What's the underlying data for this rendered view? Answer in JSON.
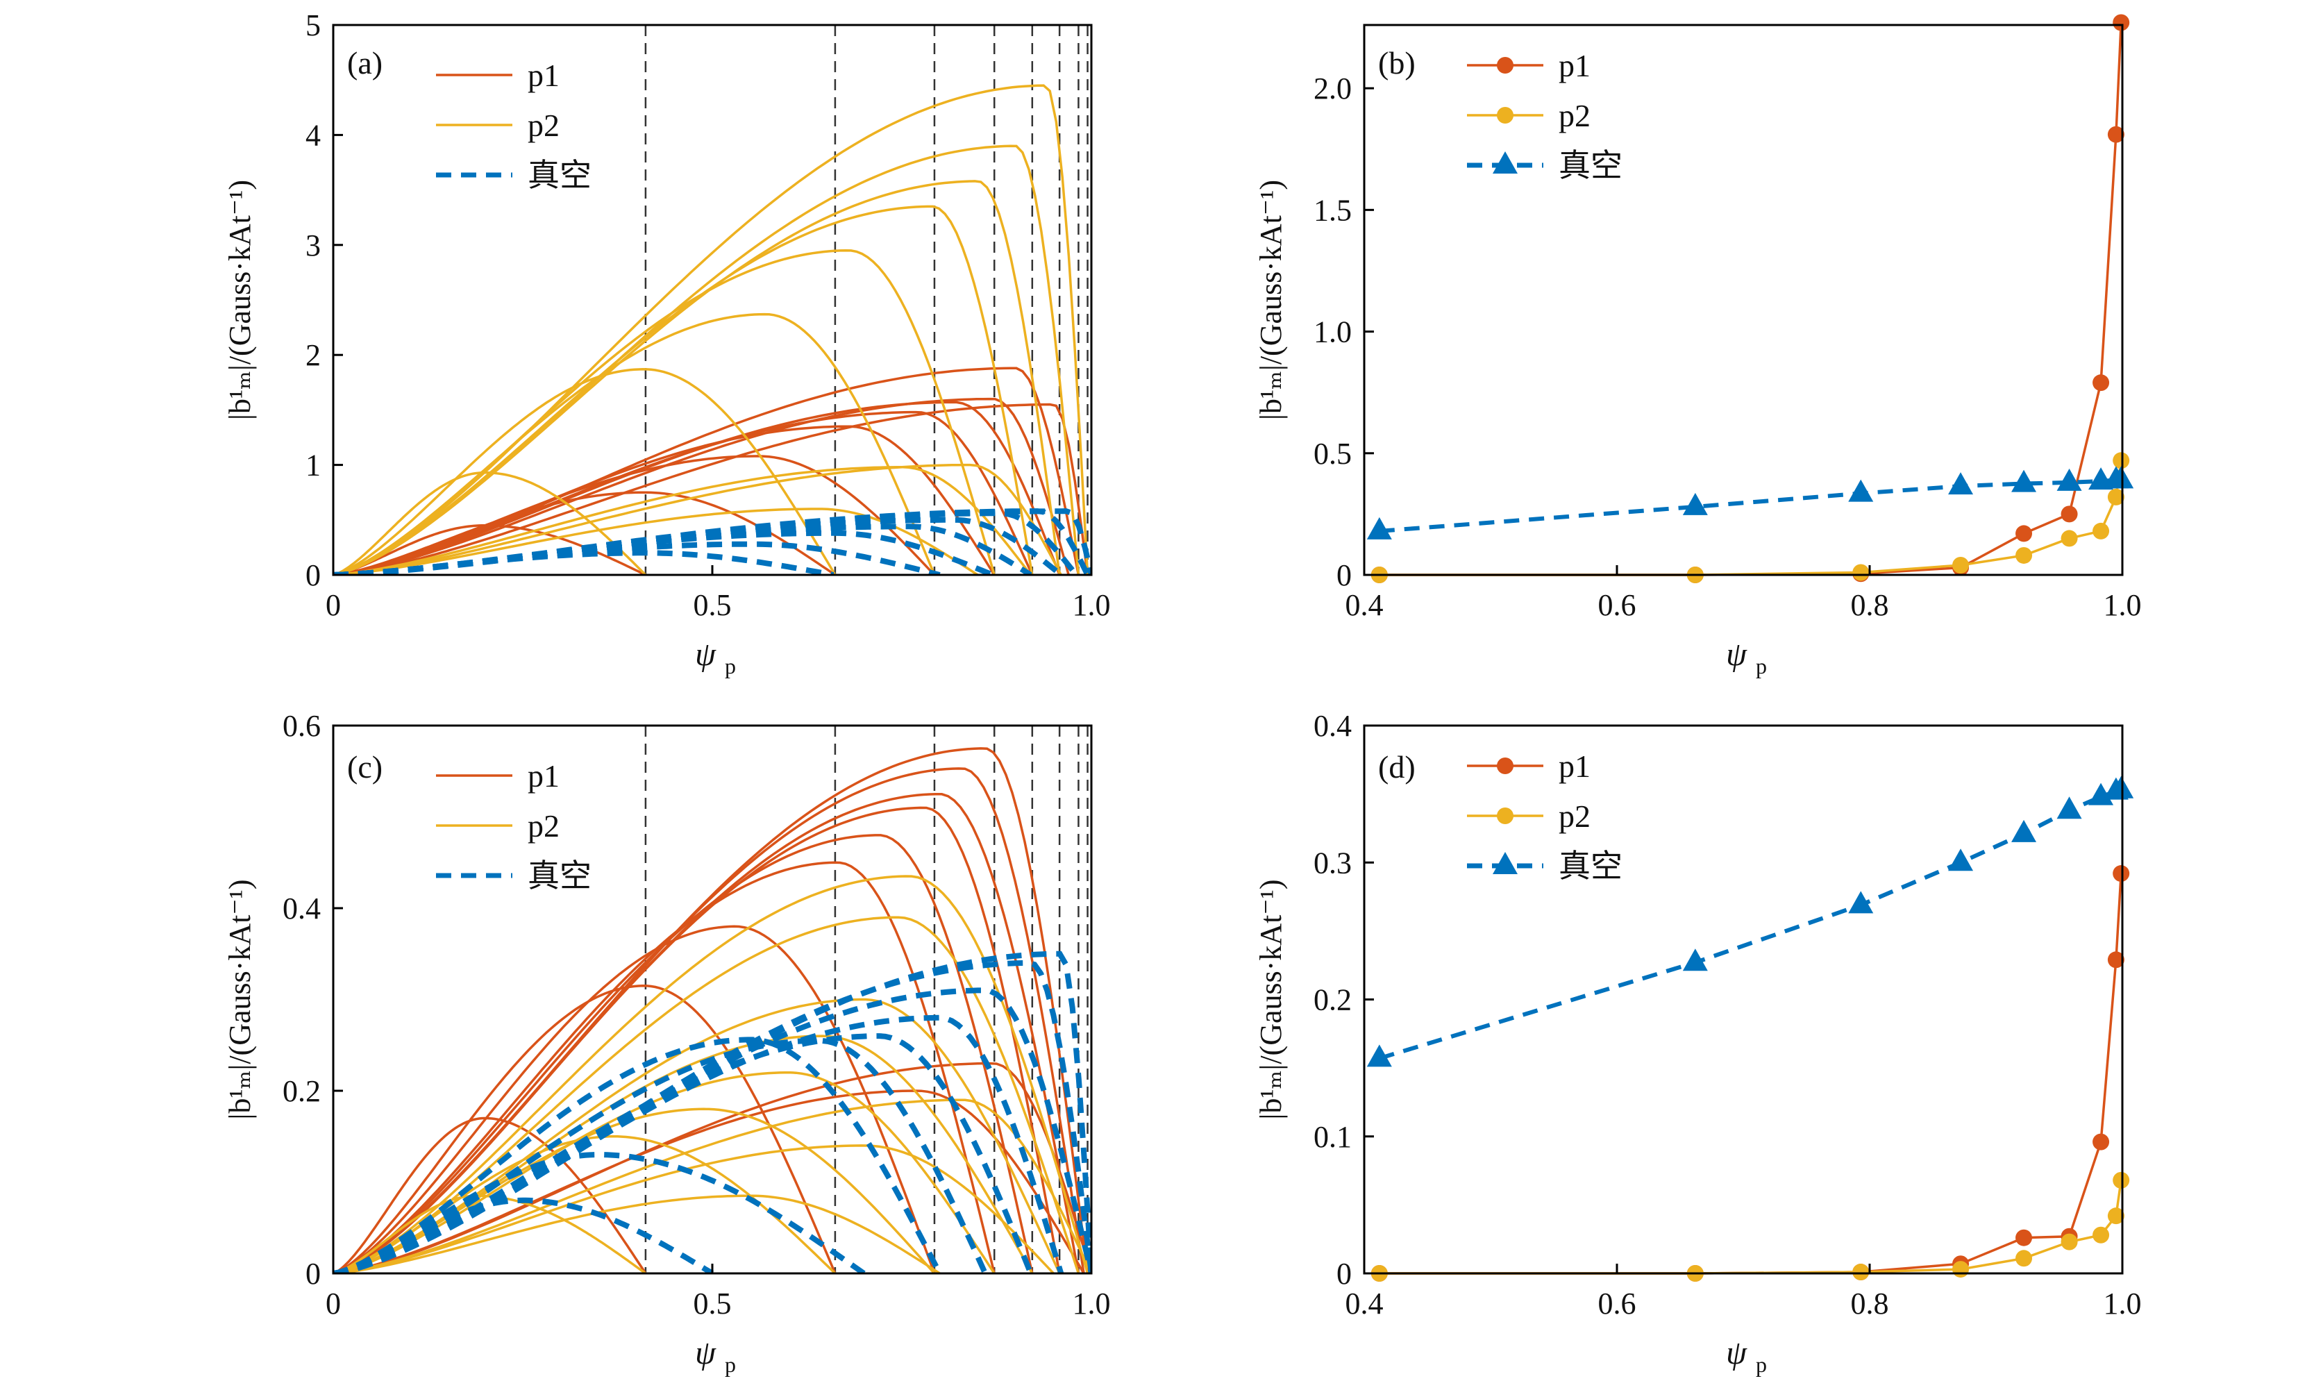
{
  "chart_data": [
    {
      "panel": "(a)",
      "type": "line",
      "xlabel": "ψ",
      "xlabel_sub": "p",
      "ylabel": "|b¹ₘ|/(Gauss·kAt⁻¹)",
      "xlim": [
        0,
        1.0
      ],
      "ylim": [
        0,
        5
      ],
      "xticks": [
        0,
        0.5,
        1.0
      ],
      "xtick_labels": [
        "0",
        "0.5",
        "1.0"
      ],
      "yticks": [
        0,
        1,
        2,
        3,
        4,
        5
      ],
      "ytick_labels": [
        "0",
        "1",
        "2",
        "3",
        "4",
        "5"
      ],
      "rational_surfaces": [
        0.412,
        0.662,
        0.793,
        0.872,
        0.922,
        0.958,
        0.983,
        0.995
      ],
      "legend": [
        "p1",
        "p2",
        "真空"
      ],
      "series": [
        {
          "name": "p1",
          "color": "#D95319",
          "style": "solid",
          "humps": [
            [
              0.2,
              0.45,
              0.412
            ],
            [
              0.41,
              0.75,
              0.662
            ],
            [
              0.56,
              1.08,
              0.793
            ],
            [
              0.68,
              1.35,
              0.872
            ],
            [
              0.77,
              1.48,
              0.922
            ],
            [
              0.82,
              1.57,
              0.958
            ],
            [
              0.87,
              1.6,
              0.97
            ],
            [
              0.9,
              1.88,
              0.983
            ],
            [
              0.95,
              1.55,
              0.995
            ]
          ]
        },
        {
          "name": "p2",
          "color": "#EDB120",
          "style": "solid",
          "humps": [
            [
              0.2,
              0.93,
              0.412
            ],
            [
              0.41,
              1.87,
              0.662
            ],
            [
              0.57,
              2.37,
              0.793
            ],
            [
              0.68,
              2.95,
              0.872
            ],
            [
              0.79,
              3.35,
              0.922
            ],
            [
              0.85,
              3.58,
              0.958
            ],
            [
              0.9,
              3.9,
              0.983
            ],
            [
              0.94,
              4.45,
              0.995
            ],
            [
              0.64,
              0.6,
              0.85
            ],
            [
              0.75,
              0.98,
              0.92
            ],
            [
              0.84,
              1.0,
              0.96
            ]
          ]
        },
        {
          "name": "真空",
          "color": "#0072BD",
          "style": "dashed",
          "humps": [
            [
              0.41,
              0.2,
              0.66
            ],
            [
              0.55,
              0.28,
              0.8
            ],
            [
              0.66,
              0.38,
              0.87
            ],
            [
              0.76,
              0.44,
              0.92
            ],
            [
              0.82,
              0.5,
              0.96
            ],
            [
              0.88,
              0.56,
              0.98
            ],
            [
              0.93,
              0.58,
              0.995
            ],
            [
              0.97,
              0.58,
              1.0
            ]
          ]
        }
      ]
    },
    {
      "panel": "(b)",
      "type": "line",
      "xlabel": "ψ",
      "xlabel_sub": "p",
      "ylabel": "|b¹ₘ|/(Gauss·kAt⁻¹)",
      "xlim": [
        0.4,
        1.0
      ],
      "ylim": [
        0,
        2.26
      ],
      "xticks": [
        0.4,
        0.6,
        0.8,
        1.0
      ],
      "xtick_labels": [
        "0.4",
        "0.6",
        "0.8",
        "1.0"
      ],
      "yticks": [
        0,
        0.5,
        1.0,
        1.5,
        2.0
      ],
      "ytick_labels": [
        "0",
        "0.5",
        "1.0",
        "1.5",
        "2.0"
      ],
      "legend": [
        "p1",
        "p2",
        "真空"
      ],
      "x": [
        0.412,
        0.662,
        0.793,
        0.872,
        0.922,
        0.958,
        0.983,
        0.995,
        0.999
      ],
      "series": [
        {
          "name": "p1",
          "color": "#D95319",
          "marker": "circle",
          "style": "solid",
          "values": [
            0,
            0,
            0.005,
            0.03,
            0.17,
            0.25,
            0.79,
            1.81,
            2.27
          ]
        },
        {
          "name": "p2",
          "color": "#EDB120",
          "marker": "circle",
          "style": "solid",
          "values": [
            0,
            0,
            0.01,
            0.04,
            0.08,
            0.15,
            0.18,
            0.32,
            0.47
          ]
        },
        {
          "name": "真空",
          "color": "#0072BD",
          "marker": "triangle",
          "style": "dashed",
          "values": [
            0.18,
            0.28,
            0.335,
            0.365,
            0.375,
            0.38,
            0.385,
            0.39,
            0.39
          ]
        }
      ]
    },
    {
      "panel": "(c)",
      "type": "line",
      "xlabel": "ψ",
      "xlabel_sub": "p",
      "ylabel": "|b¹ₘ|/(Gauss·kAt⁻¹)",
      "xlim": [
        0,
        1.0
      ],
      "ylim": [
        0,
        0.6
      ],
      "xticks": [
        0,
        0.5,
        1.0
      ],
      "xtick_labels": [
        "0",
        "0.5",
        "1.0"
      ],
      "yticks": [
        0,
        0.2,
        0.4,
        0.6
      ],
      "ytick_labels": [
        "0",
        "0.2",
        "0.4",
        "0.6"
      ],
      "rational_surfaces": [
        0.412,
        0.662,
        0.793,
        0.872,
        0.922,
        0.958,
        0.983,
        0.995
      ],
      "legend": [
        "p1",
        "p2",
        "真空"
      ],
      "series": [
        {
          "name": "p1",
          "color": "#D95319",
          "style": "solid",
          "humps": [
            [
              0.2,
              0.17,
              0.412
            ],
            [
              0.41,
              0.315,
              0.662
            ],
            [
              0.53,
              0.38,
              0.793
            ],
            [
              0.665,
              0.45,
              0.872
            ],
            [
              0.72,
              0.48,
              0.922
            ],
            [
              0.78,
              0.51,
              0.958
            ],
            [
              0.8,
              0.525,
              0.983
            ],
            [
              0.83,
              0.553,
              0.99
            ],
            [
              0.86,
              0.575,
              0.995
            ],
            [
              0.77,
              0.2,
              0.99
            ],
            [
              0.87,
              0.23,
              1.0
            ]
          ]
        },
        {
          "name": "p2",
          "color": "#EDB120",
          "style": "solid",
          "humps": [
            [
              0.19,
              0.085,
              0.412
            ],
            [
              0.37,
              0.15,
              0.662
            ],
            [
              0.49,
              0.18,
              0.793
            ],
            [
              0.6,
              0.22,
              0.872
            ],
            [
              0.645,
              0.26,
              0.922
            ],
            [
              0.7,
              0.3,
              0.958
            ],
            [
              0.745,
              0.39,
              0.983
            ],
            [
              0.76,
              0.435,
              0.995
            ],
            [
              0.55,
              0.085,
              0.8
            ],
            [
              0.7,
              0.14,
              0.95
            ],
            [
              0.83,
              0.19,
              1.0
            ]
          ]
        },
        {
          "name": "真空",
          "color": "#0072BD",
          "style": "dashed",
          "humps": [
            [
              0.25,
              0.08,
              0.5
            ],
            [
              0.35,
              0.13,
              0.7
            ],
            [
              0.55,
              0.256,
              0.8
            ],
            [
              0.64,
              0.255,
              0.86
            ],
            [
              0.72,
              0.26,
              0.92
            ],
            [
              0.8,
              0.28,
              0.96
            ],
            [
              0.86,
              0.31,
              1.0
            ],
            [
              0.92,
              0.34,
              1.0
            ],
            [
              0.96,
              0.35,
              1.0
            ]
          ]
        }
      ]
    },
    {
      "panel": "(d)",
      "type": "line",
      "xlabel": "ψ",
      "xlabel_sub": "p",
      "ylabel": "|b¹ₘ|/(Gauss·kAt⁻¹)",
      "xlim": [
        0.4,
        1.0
      ],
      "ylim": [
        0,
        0.4
      ],
      "xticks": [
        0.4,
        0.6,
        0.8,
        1.0
      ],
      "xtick_labels": [
        "0.4",
        "0.6",
        "0.8",
        "1.0"
      ],
      "yticks": [
        0,
        0.1,
        0.2,
        0.3,
        0.4
      ],
      "ytick_labels": [
        "0",
        "0.1",
        "0.2",
        "0.3",
        "0.4"
      ],
      "legend": [
        "p1",
        "p2",
        "真空"
      ],
      "x": [
        0.412,
        0.662,
        0.793,
        0.872,
        0.922,
        0.958,
        0.983,
        0.995,
        0.999
      ],
      "series": [
        {
          "name": "p1",
          "color": "#D95319",
          "marker": "circle",
          "style": "solid",
          "values": [
            0,
            0,
            0.001,
            0.007,
            0.026,
            0.027,
            0.096,
            0.229,
            0.292
          ]
        },
        {
          "name": "p2",
          "color": "#EDB120",
          "marker": "circle",
          "style": "solid",
          "values": [
            0,
            0,
            0.001,
            0.003,
            0.011,
            0.023,
            0.028,
            0.042,
            0.068
          ]
        },
        {
          "name": "真空",
          "color": "#0072BD",
          "marker": "triangle",
          "style": "dashed",
          "values": [
            0.157,
            0.227,
            0.269,
            0.3,
            0.321,
            0.338,
            0.348,
            0.352,
            0.353
          ]
        }
      ]
    }
  ]
}
